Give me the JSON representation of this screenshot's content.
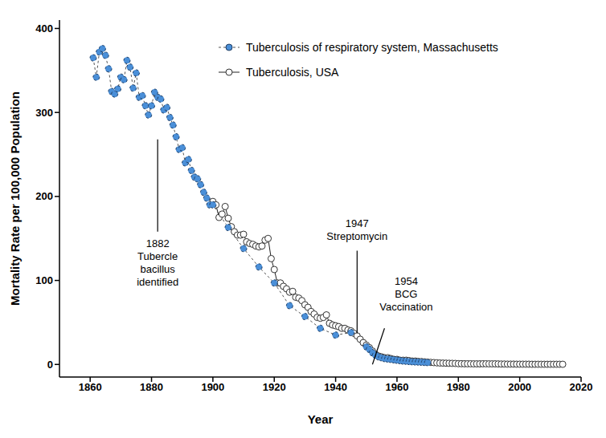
{
  "chart_data": {
    "type": "line",
    "x_label": "Year",
    "y_label": "Mortality Rate per 100,000 Population",
    "xlim": [
      1850,
      2020
    ],
    "xticks": [
      1860,
      1880,
      1900,
      1920,
      1940,
      1960,
      1980,
      2000,
      2020
    ],
    "ylim": [
      -15,
      410
    ],
    "yticks": [
      0,
      100,
      200,
      300,
      400
    ],
    "grid": false,
    "legend": "upper right",
    "series": [
      {
        "name": "Tuberculosis of respiratory system, Massachusetts",
        "color": "#4a8fd8",
        "marker": "circle",
        "line_style": "dashed",
        "x": [
          1861,
          1862,
          1863,
          1864,
          1865,
          1866,
          1867,
          1868,
          1869,
          1870,
          1871,
          1872,
          1873,
          1874,
          1875,
          1876,
          1877,
          1878,
          1879,
          1880,
          1881,
          1882,
          1883,
          1884,
          1885,
          1886,
          1887,
          1888,
          1889,
          1890,
          1891,
          1892,
          1893,
          1894,
          1895,
          1896,
          1897,
          1898,
          1899,
          1900,
          1905,
          1910,
          1915,
          1920,
          1925,
          1930,
          1935,
          1940,
          1945,
          1950,
          1951,
          1952,
          1953,
          1954,
          1955,
          1956,
          1957,
          1958,
          1959,
          1960,
          1961,
          1962,
          1963,
          1964,
          1965,
          1966,
          1967,
          1968,
          1969,
          1970
        ],
        "values": [
          365,
          342,
          372,
          376,
          368,
          352,
          325,
          322,
          328,
          342,
          339,
          362,
          354,
          329,
          347,
          318,
          320,
          308,
          297,
          308,
          324,
          318,
          316,
          303,
          306,
          294,
          285,
          271,
          256,
          258,
          240,
          244,
          231,
          223,
          221,
          214,
          205,
          198,
          190,
          190,
          163,
          138,
          116,
          97,
          70,
          57,
          43,
          35,
          38,
          21,
          18,
          14,
          11,
          9,
          8,
          7,
          6.5,
          6,
          5.5,
          5,
          4.5,
          4,
          3.8,
          3.5,
          3.2,
          3,
          2.8,
          2.6,
          2.4,
          2.2
        ]
      },
      {
        "name": "Tuberculosis, USA",
        "color": "#ffffff",
        "marker": "circle",
        "line_style": "solid",
        "x": [
          1900,
          1901,
          1902,
          1903,
          1904,
          1905,
          1906,
          1907,
          1908,
          1909,
          1910,
          1911,
          1912,
          1913,
          1914,
          1915,
          1916,
          1917,
          1918,
          1919,
          1920,
          1921,
          1922,
          1923,
          1924,
          1925,
          1926,
          1927,
          1928,
          1929,
          1930,
          1931,
          1932,
          1933,
          1934,
          1935,
          1936,
          1937,
          1938,
          1939,
          1940,
          1941,
          1942,
          1943,
          1944,
          1945,
          1946,
          1947,
          1948,
          1949,
          1950,
          1951,
          1952,
          1953,
          1954,
          1955,
          1956,
          1957,
          1958,
          1959,
          1960,
          1961,
          1962,
          1963,
          1964,
          1965,
          1966,
          1967,
          1968,
          1969,
          1970,
          1971,
          1972,
          1973,
          1974,
          1975,
          1976,
          1977,
          1978,
          1979,
          1980,
          1981,
          1982,
          1983,
          1984,
          1985,
          1986,
          1987,
          1988,
          1989,
          1990,
          1991,
          1992,
          1993,
          1994,
          1995,
          1996,
          1997,
          1998,
          1999,
          2000,
          2001,
          2002,
          2003,
          2004,
          2005,
          2006,
          2007,
          2008,
          2009,
          2010,
          2011,
          2012,
          2013,
          2014
        ],
        "values": [
          194,
          190,
          175,
          179,
          188,
          174,
          164,
          158,
          154,
          154,
          155,
          146,
          144,
          143,
          141,
          140,
          141,
          148,
          150,
          126,
          113,
          97,
          97,
          93,
          90,
          86,
          87,
          80,
          79,
          76,
          71,
          68,
          63,
          60,
          56,
          55,
          56,
          59,
          49,
          47,
          46,
          45,
          43,
          43,
          41,
          40,
          37,
          34,
          30,
          26,
          23,
          20,
          16,
          12,
          10,
          9,
          8,
          8,
          7,
          6,
          6,
          5,
          5,
          5,
          4.5,
          4,
          4,
          3.5,
          3.4,
          3,
          2.6,
          2.4,
          2.2,
          1.9,
          1.7,
          1.6,
          1.5,
          1.4,
          1.3,
          1.2,
          0.9,
          0.9,
          0.8,
          0.8,
          0.8,
          0.7,
          0.7,
          0.7,
          0.8,
          0.8,
          0.7,
          0.7,
          0.7,
          0.6,
          0.5,
          0.5,
          0.4,
          0.4,
          0.4,
          0.3,
          0.3,
          0.3,
          0.3,
          0.3,
          0.2,
          0.2,
          0.2,
          0.2,
          0.2,
          0.2,
          0.2,
          0.2,
          0.2,
          0.2,
          0.2
        ]
      }
    ],
    "annotations": [
      {
        "text": "1882 Tubercle bacillus identified",
        "x": 1882,
        "y": 268
      },
      {
        "text": "1947 Streptomycin",
        "x": 1947,
        "y": 37
      },
      {
        "text": "1954 BCG Vaccination",
        "x": 1952,
        "y": 0
      }
    ]
  }
}
